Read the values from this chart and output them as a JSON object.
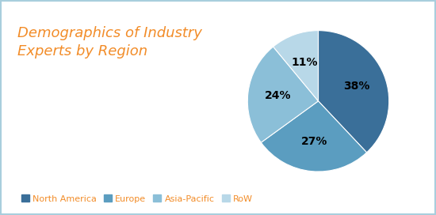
{
  "title": "Demographics of Industry\nExperts by Region",
  "title_color": "#F28C28",
  "title_fontsize": 13,
  "labels": [
    "North America",
    "Europe",
    "Asia-Pacific",
    "RoW"
  ],
  "values": [
    38,
    27,
    24,
    11
  ],
  "colors": [
    "#3A6F99",
    "#5B9DC0",
    "#8BBFD8",
    "#B8D8E8"
  ],
  "legend_text_color": "#F28C28",
  "background_color": "#FFFFFF",
  "border_color": "#A8CEDD",
  "startangle": 90
}
